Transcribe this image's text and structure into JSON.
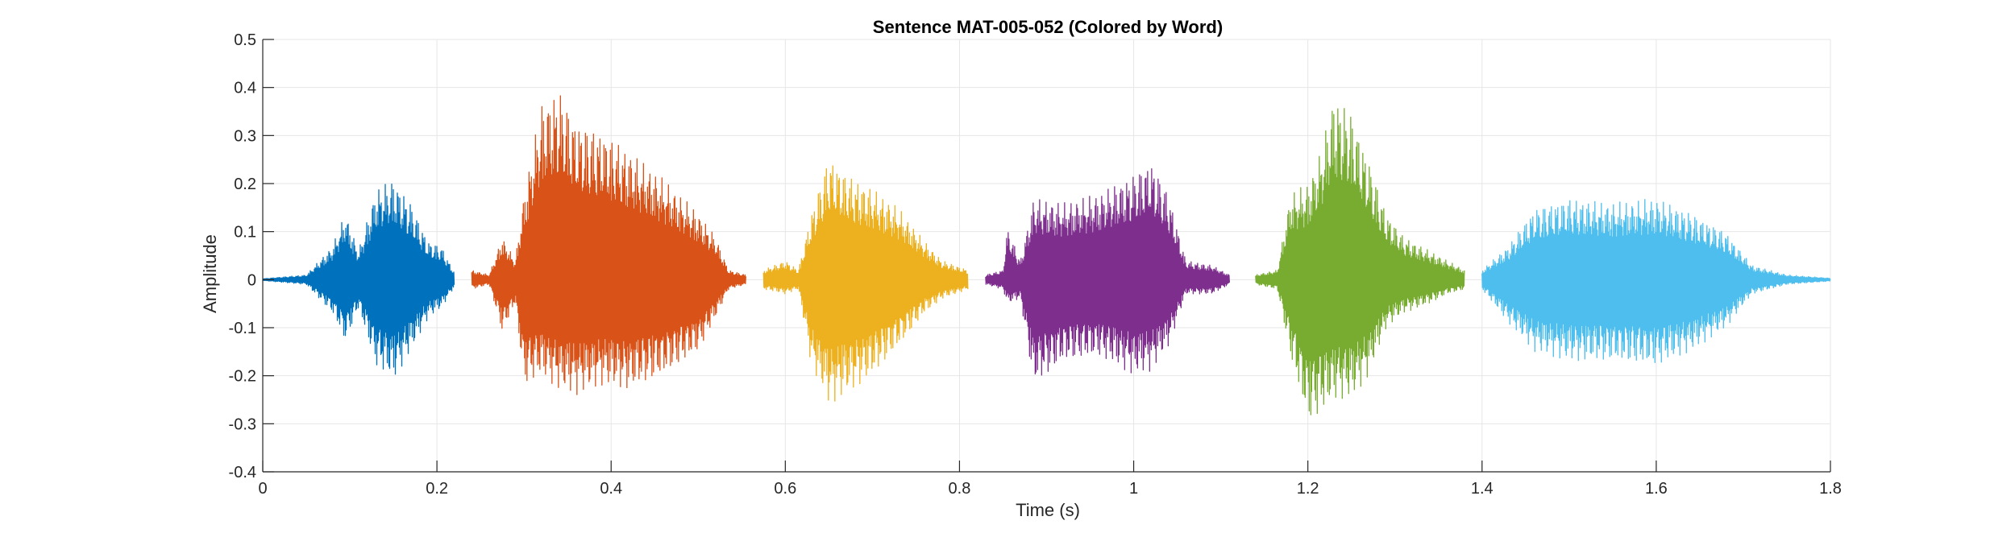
{
  "chart_data": {
    "type": "line",
    "title": "Sentence MAT-005-052 (Colored by Word)",
    "xlabel": "Time (s)",
    "ylabel": "Amplitude",
    "xlim": [
      0,
      1.8
    ],
    "ylim": [
      -0.4,
      0.5
    ],
    "xticks": [
      0,
      0.2,
      0.4,
      0.6,
      0.8,
      1,
      1.2,
      1.4,
      1.6,
      1.8
    ],
    "yticks": [
      -0.4,
      -0.3,
      -0.2,
      -0.1,
      0,
      0.1,
      0.2,
      0.3,
      0.4,
      0.5
    ],
    "grid": true,
    "legend": "none",
    "series": [
      {
        "color": "#0072BD",
        "t_start": 0.0,
        "t_end": 0.22,
        "envelope_pos": [
          [
            0.0,
            0.002
          ],
          [
            0.05,
            0.01
          ],
          [
            0.08,
            0.07
          ],
          [
            0.095,
            0.14
          ],
          [
            0.11,
            0.06
          ],
          [
            0.13,
            0.19
          ],
          [
            0.15,
            0.21
          ],
          [
            0.17,
            0.16
          ],
          [
            0.19,
            0.08
          ],
          [
            0.205,
            0.07
          ],
          [
            0.22,
            0.015
          ]
        ],
        "envelope_neg": [
          [
            0.0,
            -0.002
          ],
          [
            0.05,
            -0.01
          ],
          [
            0.08,
            -0.07
          ],
          [
            0.095,
            -0.13
          ],
          [
            0.11,
            -0.06
          ],
          [
            0.13,
            -0.18
          ],
          [
            0.15,
            -0.21
          ],
          [
            0.17,
            -0.15
          ],
          [
            0.19,
            -0.08
          ],
          [
            0.205,
            -0.06
          ],
          [
            0.22,
            -0.015
          ]
        ]
      },
      {
        "color": "#D95319",
        "t_start": 0.24,
        "t_end": 0.555,
        "envelope_pos": [
          [
            0.24,
            0.02
          ],
          [
            0.26,
            0.01
          ],
          [
            0.275,
            0.09
          ],
          [
            0.29,
            0.04
          ],
          [
            0.3,
            0.18
          ],
          [
            0.32,
            0.37
          ],
          [
            0.34,
            0.4
          ],
          [
            0.36,
            0.33
          ],
          [
            0.39,
            0.31
          ],
          [
            0.42,
            0.27
          ],
          [
            0.46,
            0.21
          ],
          [
            0.5,
            0.14
          ],
          [
            0.52,
            0.09
          ],
          [
            0.535,
            0.02
          ],
          [
            0.555,
            0.01
          ]
        ],
        "envelope_neg": [
          [
            0.24,
            -0.02
          ],
          [
            0.26,
            -0.01
          ],
          [
            0.275,
            -0.11
          ],
          [
            0.29,
            -0.05
          ],
          [
            0.3,
            -0.22
          ],
          [
            0.32,
            -0.2
          ],
          [
            0.34,
            -0.23
          ],
          [
            0.36,
            -0.24
          ],
          [
            0.39,
            -0.22
          ],
          [
            0.42,
            -0.23
          ],
          [
            0.46,
            -0.2
          ],
          [
            0.5,
            -0.15
          ],
          [
            0.52,
            -0.08
          ],
          [
            0.535,
            -0.02
          ],
          [
            0.555,
            -0.01
          ]
        ]
      },
      {
        "color": "#EDB120",
        "t_start": 0.575,
        "t_end": 0.81,
        "envelope_pos": [
          [
            0.575,
            0.02
          ],
          [
            0.6,
            0.04
          ],
          [
            0.615,
            0.02
          ],
          [
            0.63,
            0.14
          ],
          [
            0.65,
            0.26
          ],
          [
            0.67,
            0.22
          ],
          [
            0.7,
            0.19
          ],
          [
            0.73,
            0.15
          ],
          [
            0.76,
            0.08
          ],
          [
            0.78,
            0.04
          ],
          [
            0.81,
            0.02
          ]
        ],
        "envelope_neg": [
          [
            0.575,
            -0.02
          ],
          [
            0.6,
            -0.03
          ],
          [
            0.615,
            -0.02
          ],
          [
            0.63,
            -0.18
          ],
          [
            0.65,
            -0.26
          ],
          [
            0.67,
            -0.24
          ],
          [
            0.7,
            -0.2
          ],
          [
            0.73,
            -0.14
          ],
          [
            0.76,
            -0.07
          ],
          [
            0.78,
            -0.04
          ],
          [
            0.81,
            -0.02
          ]
        ]
      },
      {
        "color": "#7E2F8E",
        "t_start": 0.83,
        "t_end": 1.11,
        "envelope_pos": [
          [
            0.83,
            0.01
          ],
          [
            0.85,
            0.02
          ],
          [
            0.855,
            0.11
          ],
          [
            0.87,
            0.04
          ],
          [
            0.885,
            0.17
          ],
          [
            0.92,
            0.16
          ],
          [
            0.96,
            0.18
          ],
          [
            1.0,
            0.22
          ],
          [
            1.02,
            0.25
          ],
          [
            1.04,
            0.18
          ],
          [
            1.06,
            0.04
          ],
          [
            1.09,
            0.03
          ],
          [
            1.11,
            0.01
          ]
        ],
        "envelope_neg": [
          [
            0.83,
            -0.01
          ],
          [
            0.85,
            -0.02
          ],
          [
            0.855,
            -0.05
          ],
          [
            0.87,
            -0.04
          ],
          [
            0.885,
            -0.22
          ],
          [
            0.92,
            -0.17
          ],
          [
            0.96,
            -0.16
          ],
          [
            1.0,
            -0.2
          ],
          [
            1.02,
            -0.19
          ],
          [
            1.04,
            -0.14
          ],
          [
            1.06,
            -0.03
          ],
          [
            1.09,
            -0.03
          ],
          [
            1.11,
            -0.01
          ]
        ]
      },
      {
        "color": "#77AC30",
        "t_start": 1.14,
        "t_end": 1.38,
        "envelope_pos": [
          [
            1.14,
            0.01
          ],
          [
            1.165,
            0.02
          ],
          [
            1.18,
            0.18
          ],
          [
            1.2,
            0.2
          ],
          [
            1.215,
            0.27
          ],
          [
            1.23,
            0.39
          ],
          [
            1.25,
            0.35
          ],
          [
            1.27,
            0.25
          ],
          [
            1.29,
            0.14
          ],
          [
            1.31,
            0.09
          ],
          [
            1.34,
            0.06
          ],
          [
            1.36,
            0.04
          ],
          [
            1.38,
            0.02
          ]
        ],
        "envelope_neg": [
          [
            1.14,
            -0.01
          ],
          [
            1.165,
            -0.02
          ],
          [
            1.18,
            -0.16
          ],
          [
            1.2,
            -0.3
          ],
          [
            1.215,
            -0.28
          ],
          [
            1.23,
            -0.25
          ],
          [
            1.25,
            -0.25
          ],
          [
            1.27,
            -0.2
          ],
          [
            1.29,
            -0.1
          ],
          [
            1.31,
            -0.07
          ],
          [
            1.34,
            -0.05
          ],
          [
            1.36,
            -0.03
          ],
          [
            1.38,
            -0.02
          ]
        ]
      },
      {
        "color": "#4DBEEE",
        "t_start": 1.4,
        "t_end": 1.8,
        "envelope_pos": [
          [
            1.4,
            0.02
          ],
          [
            1.43,
            0.07
          ],
          [
            1.46,
            0.15
          ],
          [
            1.5,
            0.17
          ],
          [
            1.55,
            0.16
          ],
          [
            1.6,
            0.17
          ],
          [
            1.64,
            0.14
          ],
          [
            1.68,
            0.1
          ],
          [
            1.71,
            0.03
          ],
          [
            1.75,
            0.01
          ],
          [
            1.8,
            0.003
          ]
        ],
        "envelope_neg": [
          [
            1.4,
            -0.02
          ],
          [
            1.43,
            -0.09
          ],
          [
            1.46,
            -0.15
          ],
          [
            1.5,
            -0.17
          ],
          [
            1.55,
            -0.17
          ],
          [
            1.6,
            -0.18
          ],
          [
            1.64,
            -0.15
          ],
          [
            1.68,
            -0.1
          ],
          [
            1.71,
            -0.03
          ],
          [
            1.75,
            -0.01
          ],
          [
            1.8,
            -0.003
          ]
        ]
      }
    ]
  }
}
